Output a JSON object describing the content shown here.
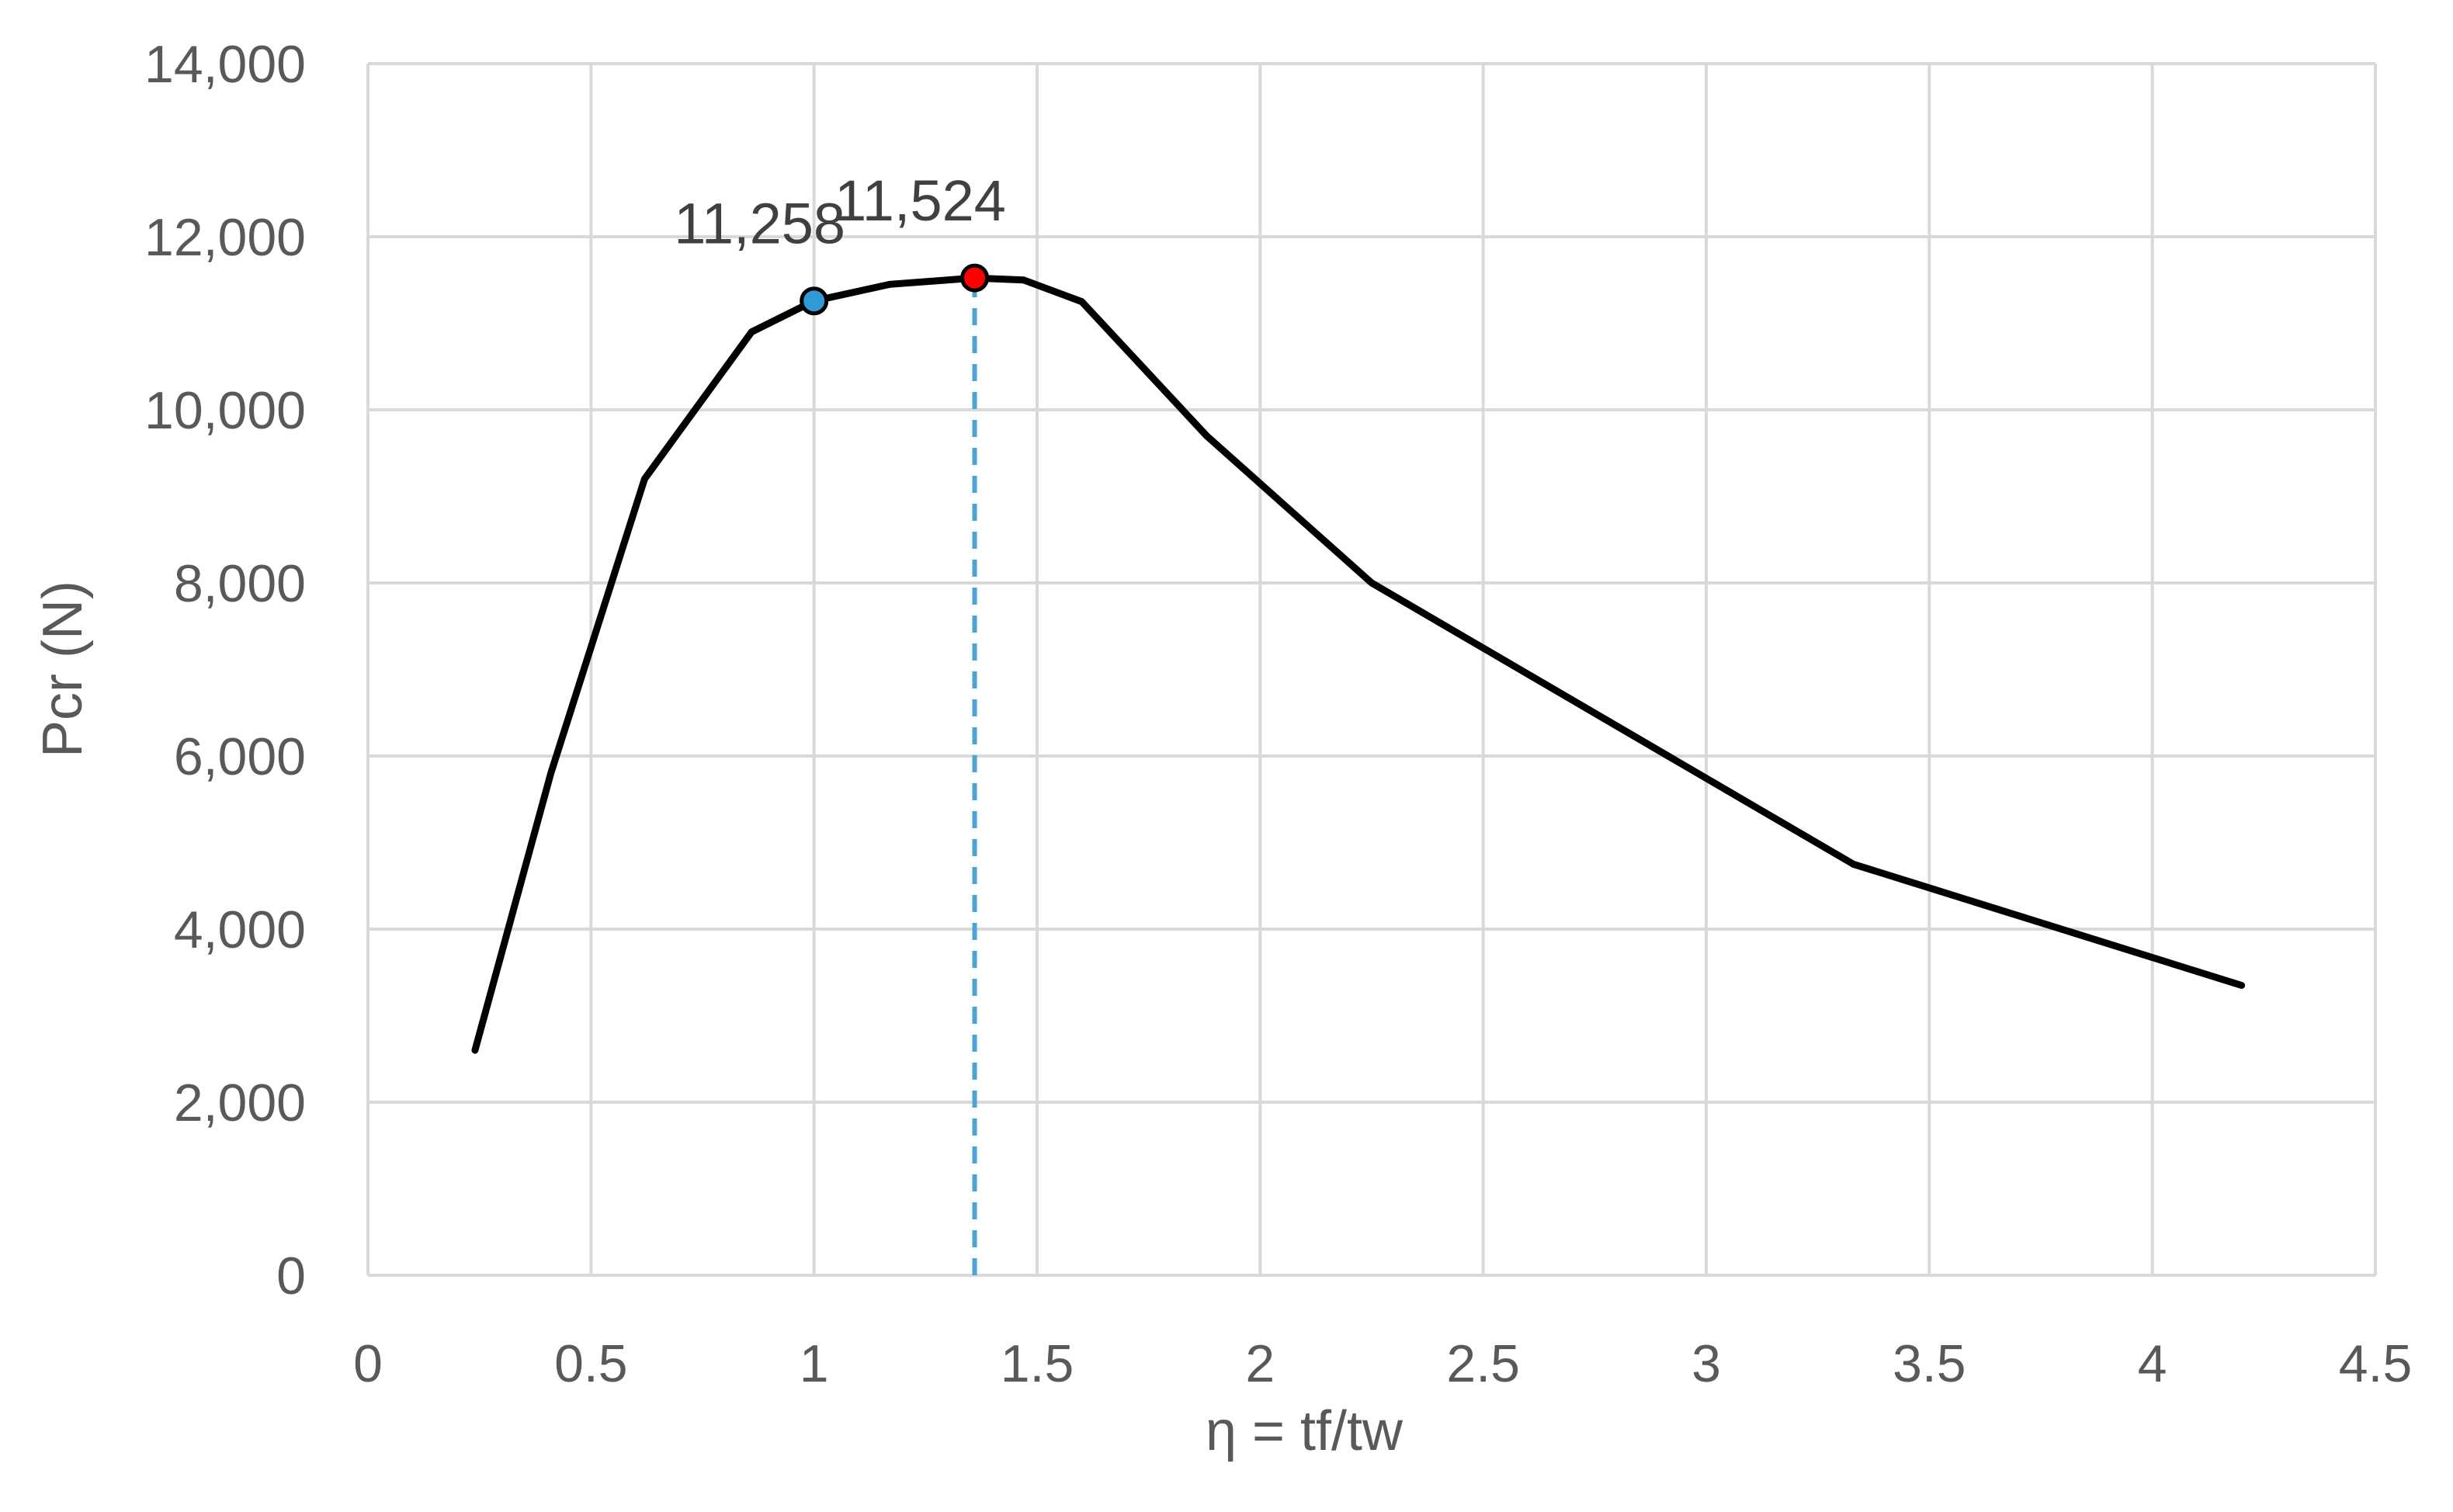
{
  "chart_data": {
    "type": "line",
    "xlabel": "η = tf/tw",
    "ylabel": "Pcr (N)",
    "xlim": [
      0,
      4.5
    ],
    "ylim": [
      0,
      14000
    ],
    "x_ticks": [
      "0",
      "0.5",
      "1",
      "1.5",
      "2",
      "2.5",
      "3",
      "3.5",
      "4",
      "4.5"
    ],
    "y_ticks": [
      "0",
      "2,000",
      "4,000",
      "6,000",
      "8,000",
      "10,000",
      "12,000",
      "14,000"
    ],
    "grid": true,
    "legend": "none",
    "series": [
      {
        "color": "#000000",
        "x": [
          0.24,
          0.41,
          0.62,
          0.86,
          1.0,
          1.17,
          1.36,
          1.47,
          1.6,
          1.88,
          2.25,
          3.33,
          4.2
        ],
        "y": [
          2600,
          5800,
          9200,
          10900,
          11258,
          11450,
          11524,
          11500,
          11250,
          9700,
          8000,
          4750,
          3350
        ]
      }
    ],
    "markers": [
      {
        "x": 1.0,
        "y": 11258,
        "label": "11,258",
        "color": "#2e9bd6"
      },
      {
        "x": 1.36,
        "y": 11524,
        "label": "11,524",
        "color": "#ff0000"
      }
    ],
    "reference_line": {
      "x": 1.36,
      "color": "#4da3d4",
      "style": "dashed"
    }
  }
}
